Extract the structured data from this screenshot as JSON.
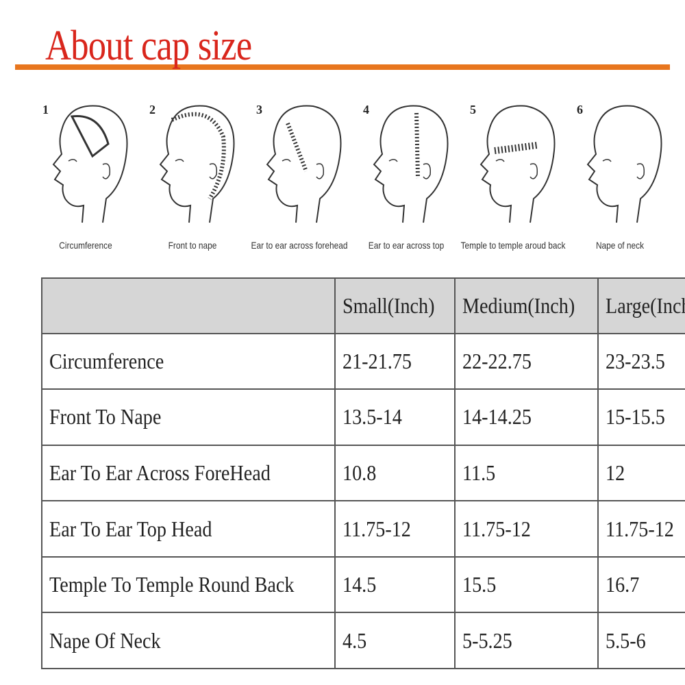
{
  "title": "About cap size",
  "colors": {
    "title": "#d9261c",
    "rule": "#e8761e",
    "header_bg": "#d6d6d6"
  },
  "figures": [
    {
      "num": "1",
      "caption": "Circumference",
      "icon": "head-circumference-icon"
    },
    {
      "num": "2",
      "caption": "Front to nape",
      "icon": "head-front-to-nape-icon"
    },
    {
      "num": "3",
      "caption": "Ear to ear across forehead",
      "icon": "head-ear-forehead-icon"
    },
    {
      "num": "4",
      "caption": "Ear to ear across top",
      "icon": "head-ear-top-icon"
    },
    {
      "num": "5",
      "caption": "Temple to temple aroud back",
      "icon": "head-temple-icon"
    },
    {
      "num": "6",
      "caption": "Nape of neck",
      "icon": "head-nape-icon"
    }
  ],
  "table": {
    "headers": [
      "",
      "Small(Inch)",
      "Medium(Inch)",
      "Large(Inch)"
    ],
    "rows": [
      [
        "Circumference",
        "21-21.75",
        "22-22.75",
        "23-23.5"
      ],
      [
        "Front To Nape",
        "13.5-14",
        "14-14.25",
        "15-15.5"
      ],
      [
        "Ear To Ear Across ForeHead",
        "10.8",
        "11.5",
        "12"
      ],
      [
        "Ear To Ear Top Head",
        "11.75-12",
        "11.75-12",
        "11.75-12"
      ],
      [
        "Temple To Temple Round Back",
        "14.5",
        "15.5",
        "16.7"
      ],
      [
        "Nape Of Neck",
        "4.5",
        "5-5.25",
        "5.5-6"
      ]
    ]
  }
}
